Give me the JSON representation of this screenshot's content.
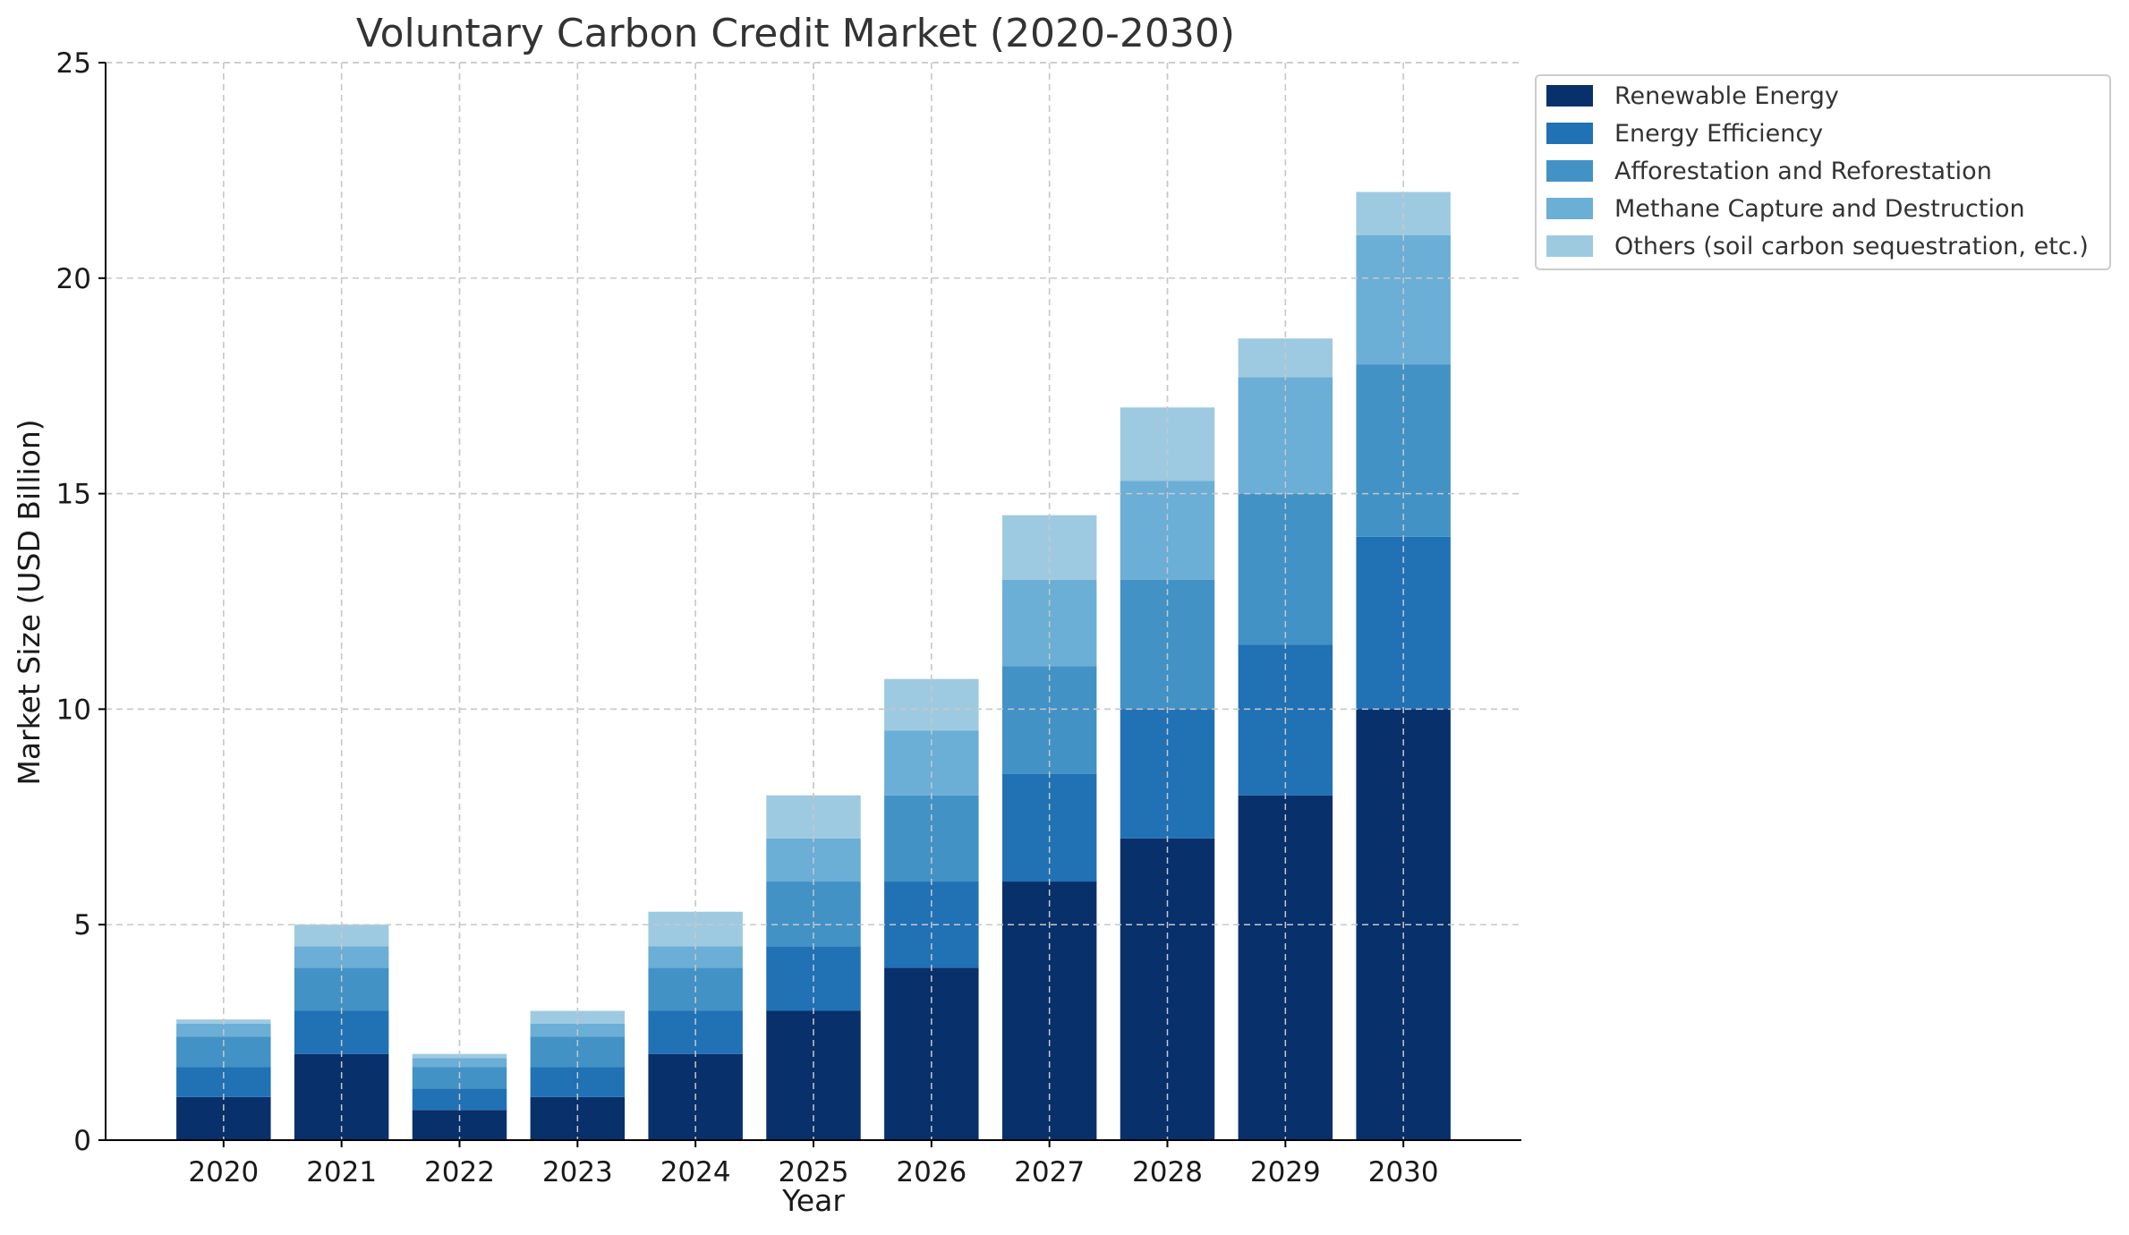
{
  "chart_data": {
    "type": "bar",
    "stacked": true,
    "title": "Voluntary Carbon Credit Market (2020-2030)",
    "xlabel": "Year",
    "ylabel": "Market Size (USD Billion)",
    "ylim": [
      0,
      25
    ],
    "yticks": [
      0,
      5,
      10,
      15,
      20,
      25
    ],
    "grid": true,
    "legend_position": "outside-top-right",
    "categories": [
      "2020",
      "2021",
      "2022",
      "2023",
      "2024",
      "2025",
      "2026",
      "2027",
      "2028",
      "2029",
      "2030"
    ],
    "series": [
      {
        "name": "Renewable Energy",
        "color": "#08306b",
        "values": [
          1.0,
          2.0,
          0.7,
          1.0,
          2.0,
          3.0,
          4.0,
          6.0,
          7.0,
          8.0,
          10.0
        ]
      },
      {
        "name": "Energy Efficiency",
        "color": "#2171b5",
        "values": [
          0.7,
          1.0,
          0.5,
          0.7,
          1.0,
          1.5,
          2.0,
          2.5,
          3.0,
          3.5,
          4.0
        ]
      },
      {
        "name": "Afforestation and Reforestation",
        "color": "#4292c6",
        "values": [
          0.7,
          1.0,
          0.5,
          0.7,
          1.0,
          1.5,
          2.0,
          2.5,
          3.0,
          3.5,
          4.0
        ]
      },
      {
        "name": "Methane Capture and Destruction",
        "color": "#6baed6",
        "values": [
          0.3,
          0.5,
          0.2,
          0.3,
          0.5,
          1.0,
          1.5,
          2.0,
          2.3,
          2.7,
          3.0
        ]
      },
      {
        "name": "Others (soil carbon sequestration, etc.)",
        "color": "#9ecae1",
        "values": [
          0.1,
          0.5,
          0.1,
          0.3,
          0.8,
          1.0,
          1.2,
          1.5,
          1.7,
          0.9,
          1.0
        ]
      }
    ]
  }
}
